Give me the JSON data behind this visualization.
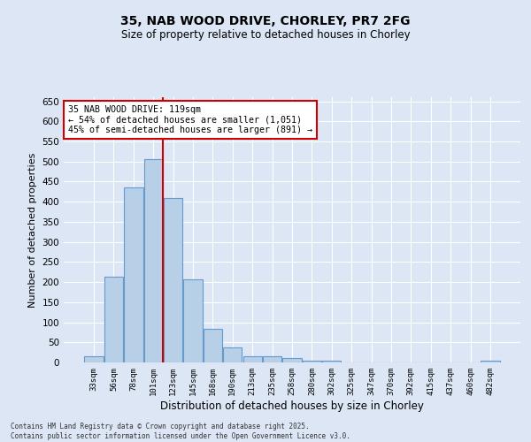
{
  "title": "35, NAB WOOD DRIVE, CHORLEY, PR7 2FG",
  "subtitle": "Size of property relative to detached houses in Chorley",
  "xlabel": "Distribution of detached houses by size in Chorley",
  "ylabel": "Number of detached properties",
  "categories": [
    "33sqm",
    "56sqm",
    "78sqm",
    "101sqm",
    "123sqm",
    "145sqm",
    "168sqm",
    "190sqm",
    "213sqm",
    "235sqm",
    "258sqm",
    "280sqm",
    "302sqm",
    "325sqm",
    "347sqm",
    "370sqm",
    "392sqm",
    "415sqm",
    "437sqm",
    "460sqm",
    "482sqm"
  ],
  "values": [
    15,
    213,
    435,
    507,
    410,
    207,
    83,
    37,
    15,
    15,
    11,
    5,
    4,
    0,
    0,
    0,
    0,
    0,
    0,
    0,
    4
  ],
  "bar_color": "#b8cfe8",
  "bar_edge_color": "#6699cc",
  "bg_color": "#dce6f5",
  "grid_color": "#ffffff",
  "vline_x": 3.5,
  "vline_color": "#cc0000",
  "annotation_text": "35 NAB WOOD DRIVE: 119sqm\n← 54% of detached houses are smaller (1,051)\n45% of semi-detached houses are larger (891) →",
  "annotation_box_color": "#ffffff",
  "annotation_border_color": "#cc0000",
  "footer_line1": "Contains HM Land Registry data © Crown copyright and database right 2025.",
  "footer_line2": "Contains public sector information licensed under the Open Government Licence v3.0.",
  "ylim": [
    0,
    660
  ],
  "yticks": [
    0,
    50,
    100,
    150,
    200,
    250,
    300,
    350,
    400,
    450,
    500,
    550,
    600,
    650
  ],
  "figsize": [
    6.0,
    5.0
  ],
  "dpi": 100
}
